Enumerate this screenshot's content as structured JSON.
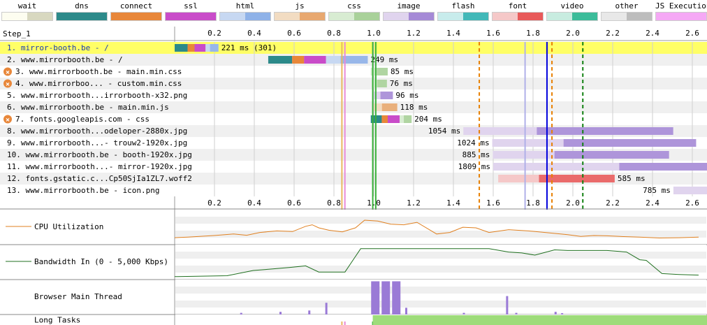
{
  "legend": [
    {
      "label": "wait",
      "c1": "#fdfdf0",
      "c2": "#d8d8c0"
    },
    {
      "label": "dns",
      "c1": "#2d8a8a",
      "c2": "#2d8a8a"
    },
    {
      "label": "connect",
      "c1": "#e8873a",
      "c2": "#e8873a"
    },
    {
      "label": "ssl",
      "c1": "#c94cc9",
      "c2": "#c94cc9"
    },
    {
      "label": "html",
      "c1": "#c7d8f2",
      "c2": "#8fb2e8"
    },
    {
      "label": "js",
      "c1": "#f2dcc2",
      "c2": "#e8a870"
    },
    {
      "label": "css",
      "c1": "#d8ecd2",
      "c2": "#a9d19a"
    },
    {
      "label": "image",
      "c1": "#e0d4ee",
      "c2": "#a58ad6"
    },
    {
      "label": "flash",
      "c1": "#c8ecec",
      "c2": "#42b8b8"
    },
    {
      "label": "font",
      "c1": "#f5c8c8",
      "c2": "#e85a5a"
    },
    {
      "label": "video",
      "c1": "#c8ece0",
      "c2": "#3cbc9a"
    },
    {
      "label": "other",
      "c1": "#e8e8e8",
      "c2": "#bdbdbd"
    },
    {
      "label": "JS Execution",
      "c1": "#f5a8f5",
      "c2": "#f5a8f5"
    }
  ],
  "step_label": "Step_1",
  "axis": {
    "max_s": 2.65,
    "ticks": [
      "0.2",
      "0.4",
      "0.6",
      "0.8",
      "1.0",
      "1.2",
      "1.4",
      "1.6",
      "1.8",
      "2.0",
      "2.2",
      "2.4",
      "2.6"
    ]
  },
  "requests": [
    {
      "label": "1. mirror-booth.be - /",
      "time": "221 ms (301)",
      "highlight": true,
      "blocked": false,
      "segments": [
        [
          "dns",
          0.0,
          0.065
        ],
        [
          "connect",
          0.065,
          0.1
        ],
        [
          "ssl",
          0.1,
          0.155
        ],
        [
          "html",
          0.155,
          0.22
        ]
      ]
    },
    {
      "label": "2. www.mirrorbooth.be - /",
      "time": "249 ms",
      "highlight": false,
      "blocked": false,
      "segments": [
        [
          "dns",
          0.47,
          0.59
        ],
        [
          "connect",
          0.59,
          0.65
        ],
        [
          "ssl",
          0.65,
          0.76
        ],
        [
          "html",
          0.76,
          0.97
        ]
      ]
    },
    {
      "label": "3. www.mirrorbooth.be - main.min.css",
      "time": "85 ms",
      "highlight": false,
      "blocked": true,
      "segments": [
        [
          "css",
          0.985,
          1.07
        ]
      ]
    },
    {
      "label": "4. www.mirrorboo... - custom.min.css",
      "time": "76 ms",
      "highlight": false,
      "blocked": true,
      "segments": [
        [
          "css",
          0.99,
          1.066
        ]
      ]
    },
    {
      "label": "5. www.mirrorbooth...irrorbooth-x32.png",
      "time": "96 ms",
      "highlight": false,
      "blocked": false,
      "segments": [
        [
          "image",
          1.0,
          1.096
        ]
      ]
    },
    {
      "label": "6. www.mirrorbooth.be - main.min.js",
      "time": "118 ms",
      "highlight": false,
      "blocked": false,
      "segments": [
        [
          "js",
          1.0,
          1.118
        ]
      ]
    },
    {
      "label": "7. fonts.googleapis.com - css",
      "time": "204 ms",
      "highlight": false,
      "blocked": true,
      "segments": [
        [
          "dns",
          0.985,
          1.04
        ],
        [
          "connect",
          1.04,
          1.07
        ],
        [
          "ssl",
          1.07,
          1.13
        ],
        [
          "css",
          1.13,
          1.19
        ]
      ]
    },
    {
      "label": "8. www.mirrorbooth...odeloper-2880x.jpg",
      "time": "1054 ms",
      "highlight": false,
      "blocked": false,
      "segments": [
        [
          "image",
          1.45,
          2.504
        ]
      ]
    },
    {
      "label": "9. www.mirrorbooth...- trouw2-1920x.jpg",
      "time": "1024 ms",
      "highlight": false,
      "blocked": false,
      "segments": [
        [
          "image",
          1.595,
          2.619
        ]
      ]
    },
    {
      "label": "10. www.mirrorbooth.be - booth-1920x.jpg",
      "time": "885 ms",
      "highlight": false,
      "blocked": false,
      "segments": [
        [
          "image",
          1.598,
          2.483
        ]
      ]
    },
    {
      "label": "11. www.mirrorbooth...- mirror-1920x.jpg",
      "time": "1809 ms",
      "highlight": false,
      "blocked": false,
      "segments": [
        [
          "image",
          1.6,
          3.409
        ]
      ]
    },
    {
      "label": "12. fonts.gstatic.c...Cp50SjIa1ZL7.woff2",
      "time": "585 ms",
      "highlight": false,
      "blocked": false,
      "segments": [
        [
          "font",
          1.625,
          2.21
        ]
      ]
    },
    {
      "label": "13. www.mirrorbooth.be - icon.png",
      "time": "785 ms",
      "highlight": false,
      "blocked": false,
      "segments": [
        [
          "image",
          2.505,
          3.29
        ]
      ]
    }
  ],
  "events": [
    {
      "t": 0.84,
      "color": "#e8b860",
      "style": "solid"
    },
    {
      "t": 0.855,
      "color": "#e88ad8",
      "style": "solid"
    },
    {
      "t": 0.995,
      "color": "#39b039",
      "style": "solid"
    },
    {
      "t": 1.01,
      "color": "#39b039",
      "style": "solid"
    },
    {
      "t": 1.53,
      "color": "#e88000",
      "style": "dashed"
    },
    {
      "t": 1.76,
      "color": "#b0b0e8",
      "style": "solid"
    },
    {
      "t": 1.87,
      "color": "#0000dd",
      "style": "solid"
    },
    {
      "t": 1.895,
      "color": "#e88000",
      "style": "dashed"
    },
    {
      "t": 2.05,
      "color": "#108010",
      "style": "dashed"
    }
  ],
  "metrics": {
    "cpu_label": "CPU Utilization",
    "bandwidth_label": "Bandwidth In (0 - 5,000 Kbps)",
    "main_thread_label": "Browser Main Thread",
    "long_tasks_label": "Long Tasks",
    "cpu_color": "#e08020",
    "bw_color": "#207020",
    "long_task_color": "#9edc7a",
    "long_tasks_start_s": 0.995,
    "cpu": [
      [
        0,
        0.18
      ],
      [
        0.1,
        0.2
      ],
      [
        0.3,
        0.25
      ],
      [
        0.45,
        0.3
      ],
      [
        0.55,
        0.26
      ],
      [
        0.65,
        0.35
      ],
      [
        0.78,
        0.4
      ],
      [
        0.9,
        0.38
      ],
      [
        1.0,
        0.55
      ],
      [
        1.05,
        0.6
      ],
      [
        1.1,
        0.5
      ],
      [
        1.18,
        0.42
      ],
      [
        1.28,
        0.37
      ],
      [
        1.38,
        0.5
      ],
      [
        1.45,
        0.75
      ],
      [
        1.55,
        0.72
      ],
      [
        1.65,
        0.62
      ],
      [
        1.75,
        0.6
      ],
      [
        1.85,
        0.68
      ],
      [
        2.0,
        0.3
      ],
      [
        2.1,
        0.35
      ],
      [
        2.2,
        0.52
      ],
      [
        2.3,
        0.5
      ],
      [
        2.4,
        0.35
      ],
      [
        2.55,
        0.44
      ],
      [
        2.7,
        0.4
      ],
      [
        2.85,
        0.34
      ],
      [
        3.0,
        0.28
      ],
      [
        3.1,
        0.22
      ],
      [
        3.2,
        0.25
      ],
      [
        3.3,
        0.24
      ],
      [
        3.4,
        0.22
      ],
      [
        3.55,
        0.2
      ],
      [
        3.7,
        0.17
      ],
      [
        3.85,
        0.18
      ],
      [
        4.0,
        0.2
      ]
    ],
    "bandwidth": [
      [
        0,
        0.05
      ],
      [
        0.4,
        0.08
      ],
      [
        0.6,
        0.25
      ],
      [
        0.75,
        0.3
      ],
      [
        0.88,
        0.35
      ],
      [
        1.0,
        0.4
      ],
      [
        1.1,
        0.2
      ],
      [
        1.3,
        0.2
      ],
      [
        1.42,
        0.96
      ],
      [
        1.6,
        0.96
      ],
      [
        2.4,
        0.96
      ],
      [
        2.55,
        0.85
      ],
      [
        2.65,
        0.82
      ],
      [
        2.75,
        0.75
      ],
      [
        2.9,
        0.92
      ],
      [
        3.0,
        0.9
      ],
      [
        3.3,
        0.9
      ],
      [
        3.45,
        0.85
      ],
      [
        3.55,
        0.6
      ],
      [
        3.6,
        0.58
      ],
      [
        3.72,
        0.15
      ],
      [
        3.85,
        0.12
      ],
      [
        4.0,
        0.1
      ]
    ],
    "main_thread": [
      [
        0.5,
        0.05
      ],
      [
        0.8,
        0.08
      ],
      [
        1.02,
        0.12
      ],
      [
        1.15,
        0.35
      ],
      [
        1.5,
        0.99
      ],
      [
        1.58,
        0.99
      ],
      [
        1.66,
        0.99
      ],
      [
        1.7,
        0.4
      ],
      [
        1.76,
        0.2
      ],
      [
        2.2,
        0.05
      ],
      [
        2.53,
        0.55
      ],
      [
        2.6,
        0.05
      ],
      [
        2.9,
        0.08
      ],
      [
        2.95,
        0.04
      ]
    ]
  }
}
